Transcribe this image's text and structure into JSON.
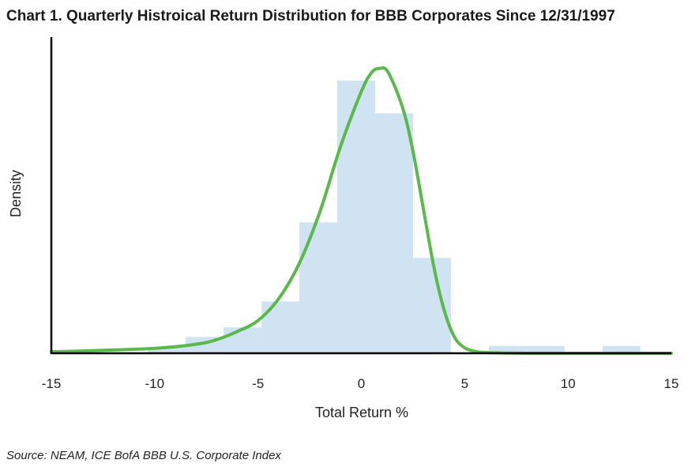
{
  "title": "Chart 1. Quarterly Histroical Return Distribution for BBB Corporates Since 12/31/1997",
  "source": "Source: NEAM, ICE BofA BBB U.S. Corporate Index",
  "colors": {
    "bars": "#cfe3f3",
    "curve": "#5bb84a",
    "axis": "#000000"
  },
  "chart_data": {
    "type": "bar",
    "title": "Chart 1. Quarterly Histroical Return Distribution for BBB Corporates Since 12/31/1997",
    "xlabel": "Total Return %",
    "ylabel": "Density",
    "xlim": [
      -15,
      15
    ],
    "ylim": [
      0,
      1.07
    ],
    "x_ticks": [
      "-15",
      "-10",
      "-5",
      "0",
      "5",
      "10",
      "15"
    ],
    "y_ticks": [],
    "grid": false,
    "bin_width": 1.8333,
    "bins": [
      {
        "x0": -10.33,
        "x1": -8.5,
        "value": 0.022
      },
      {
        "x0": -8.5,
        "x1": -6.67,
        "value": 0.06
      },
      {
        "x0": -6.67,
        "x1": -4.83,
        "value": 0.095
      },
      {
        "x0": -4.83,
        "x1": -3.0,
        "value": 0.19
      },
      {
        "x0": -3.0,
        "x1": -1.17,
        "value": 0.48
      },
      {
        "x0": -1.17,
        "x1": 0.67,
        "value": 1.0
      },
      {
        "x0": 0.67,
        "x1": 2.5,
        "value": 0.88
      },
      {
        "x0": 2.5,
        "x1": 4.33,
        "value": 0.35
      },
      {
        "x0": 4.33,
        "x1": 6.17,
        "value": 0.0
      },
      {
        "x0": 6.17,
        "x1": 8.0,
        "value": 0.027
      },
      {
        "x0": 8.0,
        "x1": 9.83,
        "value": 0.027
      },
      {
        "x0": 9.83,
        "x1": 11.67,
        "value": 0.0
      },
      {
        "x0": 11.67,
        "x1": 13.5,
        "value": 0.027
      }
    ],
    "curve": {
      "name": "fitted density",
      "x": [
        -15,
        -12,
        -10,
        -8,
        -7,
        -6,
        -5,
        -4,
        -3,
        -2,
        -1,
        0,
        0.5,
        0.9,
        1.3,
        2,
        2.5,
        3,
        3.5,
        4,
        4.5,
        5,
        5.5,
        6,
        7,
        8,
        10,
        15
      ],
      "y": [
        0.005,
        0.012,
        0.018,
        0.033,
        0.05,
        0.08,
        0.12,
        0.2,
        0.33,
        0.52,
        0.76,
        0.96,
        1.03,
        1.045,
        1.03,
        0.9,
        0.74,
        0.53,
        0.32,
        0.16,
        0.06,
        0.02,
        0.007,
        0.003,
        0.001,
        0.0,
        0.0,
        0.0
      ]
    }
  }
}
